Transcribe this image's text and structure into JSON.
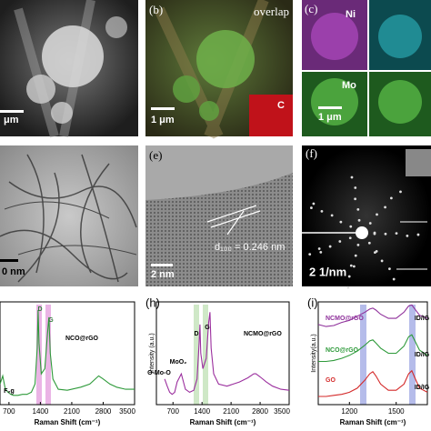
{
  "panels": {
    "a": {
      "scale_bar": "μm"
    },
    "b": {
      "label": "(b)",
      "overlay": "overlap",
      "scale_bar": "1 μm",
      "inset": "C"
    },
    "c": {
      "label": "(c)",
      "ni": "Ni",
      "mo": "Mo",
      "scale_bar": "1 μm"
    },
    "d": {
      "scale_bar": "0 nm"
    },
    "e": {
      "label": "(e)",
      "spacing": "d₁₀₀ = 0.246 nm",
      "scale_bar": "2 nm"
    },
    "f": {
      "label": "(f)",
      "scale_bar": "2 1/nm"
    }
  },
  "chart_data": [
    {
      "type": "line",
      "xlabel": "Raman Shift (cm⁻¹)",
      "x": [
        500,
        560,
        620,
        680,
        740,
        800,
        900,
        1000,
        1100,
        1200,
        1280,
        1330,
        1350,
        1370,
        1420,
        1500,
        1560,
        1590,
        1620,
        1680,
        1800,
        2000,
        2300,
        2500,
        2650,
        2700,
        2800,
        2950,
        3100,
        3300,
        3500
      ],
      "xlim": [
        500,
        3500
      ],
      "xticks": [
        700,
        1400,
        2100,
        2800,
        3500
      ],
      "ylim": [
        0,
        1
      ],
      "series": [
        {
          "name": "NCO@rGO",
          "color": "#2e9a3a",
          "values": [
            0.2,
            0.28,
            0.15,
            0.12,
            0.1,
            0.09,
            0.09,
            0.1,
            0.1,
            0.12,
            0.2,
            0.55,
            0.92,
            0.6,
            0.3,
            0.35,
            0.7,
            0.85,
            0.5,
            0.25,
            0.15,
            0.14,
            0.17,
            0.2,
            0.26,
            0.28,
            0.25,
            0.2,
            0.17,
            0.15,
            0.15
          ]
        }
      ],
      "annotations": [
        "D",
        "G",
        "F₂g"
      ]
    },
    {
      "type": "line",
      "title": "(h)",
      "xlabel": "Raman Shift (cm⁻¹)",
      "ylabel": "Intensity (a.u.)",
      "x": [
        500,
        560,
        620,
        680,
        740,
        800,
        900,
        1000,
        1100,
        1200,
        1280,
        1330,
        1350,
        1370,
        1420,
        1500,
        1560,
        1590,
        1620,
        1680,
        1800,
        2000,
        2300,
        2500,
        2650,
        2700,
        2800,
        2950,
        3100,
        3300,
        3500
      ],
      "xlim": [
        300,
        3500
      ],
      "xticks": [
        700,
        1400,
        2100,
        2800,
        3500
      ],
      "ylim": [
        0,
        1
      ],
      "series": [
        {
          "name": "NCMO@rGO",
          "color": "#9b2f9e",
          "values": [
            0.25,
            0.18,
            0.12,
            0.1,
            0.12,
            0.22,
            0.3,
            0.15,
            0.12,
            0.14,
            0.25,
            0.6,
            0.78,
            0.5,
            0.35,
            0.45,
            0.8,
            0.9,
            0.55,
            0.3,
            0.2,
            0.18,
            0.22,
            0.26,
            0.3,
            0.3,
            0.27,
            0.22,
            0.18,
            0.15,
            0.14
          ]
        }
      ],
      "annotations": [
        "D",
        "G",
        "O-Mo-O",
        "MoO₂"
      ]
    },
    {
      "type": "line",
      "title": "(i)",
      "xlabel": "Raman Shift (cm⁻¹)",
      "ylabel": "Intensity(a.u.)",
      "x": [
        1000,
        1050,
        1100,
        1150,
        1200,
        1250,
        1300,
        1330,
        1350,
        1370,
        1400,
        1450,
        1500,
        1550,
        1580,
        1600,
        1620,
        1650,
        1700
      ],
      "xlim": [
        1000,
        1700
      ],
      "xticks": [
        1200,
        1500
      ],
      "ylim": [
        0,
        1
      ],
      "series": [
        {
          "name": "NCMO@rGO",
          "color": "#8e2f9a",
          "values": [
            0.78,
            0.76,
            0.77,
            0.8,
            0.82,
            0.86,
            0.9,
            0.93,
            0.94,
            0.92,
            0.88,
            0.84,
            0.84,
            0.9,
            0.96,
            0.97,
            0.93,
            0.87,
            0.84
          ]
        },
        {
          "name": "NCO@rGO",
          "color": "#2e9a3a",
          "values": [
            0.42,
            0.42,
            0.43,
            0.45,
            0.48,
            0.52,
            0.58,
            0.62,
            0.63,
            0.6,
            0.55,
            0.5,
            0.5,
            0.57,
            0.66,
            0.68,
            0.62,
            0.53,
            0.48
          ]
        },
        {
          "name": "GO",
          "color": "#d42a2a",
          "values": [
            0.08,
            0.08,
            0.09,
            0.1,
            0.12,
            0.16,
            0.24,
            0.3,
            0.32,
            0.28,
            0.2,
            0.14,
            0.14,
            0.2,
            0.3,
            0.33,
            0.26,
            0.16,
            0.12
          ]
        }
      ],
      "annotations": [
        "ID/IG",
        "ID/IG",
        "ID/IG"
      ]
    }
  ]
}
